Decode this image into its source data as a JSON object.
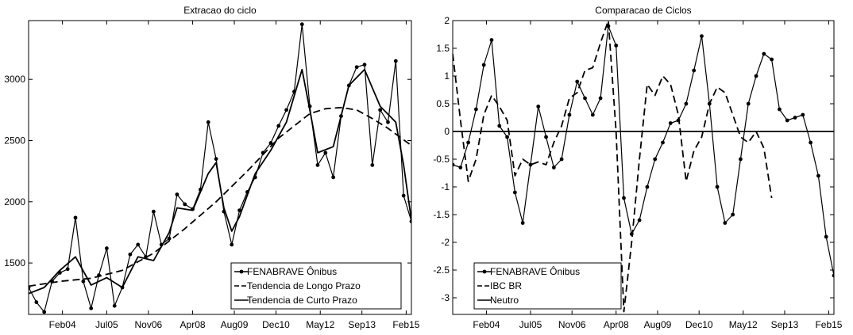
{
  "chart_data": [
    {
      "type": "line",
      "title": "Extracao do ciclo",
      "xlabel": "",
      "ylabel": "",
      "x_ticks": [
        "Feb04",
        "Jul05",
        "Nov06",
        "Apr08",
        "Aug09",
        "Dec10",
        "May12",
        "Sep13",
        "Feb15"
      ],
      "x_range": [
        "2003-01",
        "2015-04"
      ],
      "ylim": [
        1080,
        3480
      ],
      "y_ticks": [
        1500,
        2000,
        2500,
        3000
      ],
      "grid": false,
      "legend_position": "bottom-right",
      "series": [
        {
          "name": "FENABRAVE  Ônibus",
          "style": "solid-dots",
          "points": [
            [
              "2003-01",
              1300
            ],
            [
              "2003-04",
              1180
            ],
            [
              "2003-07",
              1100
            ],
            [
              "2003-10",
              1350
            ],
            [
              "2004-01",
              1420
            ],
            [
              "2004-04",
              1450
            ],
            [
              "2004-07",
              1870
            ],
            [
              "2004-10",
              1350
            ],
            [
              "2005-01",
              1130
            ],
            [
              "2005-04",
              1400
            ],
            [
              "2005-07",
              1620
            ],
            [
              "2005-10",
              1150
            ],
            [
              "2006-01",
              1300
            ],
            [
              "2006-04",
              1570
            ],
            [
              "2006-07",
              1650
            ],
            [
              "2006-10",
              1550
            ],
            [
              "2007-01",
              1920
            ],
            [
              "2007-04",
              1650
            ],
            [
              "2007-07",
              1700
            ],
            [
              "2007-10",
              2060
            ],
            [
              "2008-01",
              1980
            ],
            [
              "2008-04",
              1940
            ],
            [
              "2008-07",
              2100
            ],
            [
              "2008-10",
              2650
            ],
            [
              "2009-01",
              2350
            ],
            [
              "2009-04",
              1920
            ],
            [
              "2009-07",
              1650
            ],
            [
              "2009-10",
              1930
            ],
            [
              "2010-01",
              2080
            ],
            [
              "2010-04",
              2200
            ],
            [
              "2010-07",
              2400
            ],
            [
              "2010-10",
              2480
            ],
            [
              "2011-01",
              2620
            ],
            [
              "2011-04",
              2750
            ],
            [
              "2011-07",
              2900
            ],
            [
              "2011-10",
              3450
            ],
            [
              "2012-01",
              2780
            ],
            [
              "2012-04",
              2300
            ],
            [
              "2012-07",
              2400
            ],
            [
              "2012-10",
              2200
            ],
            [
              "2013-01",
              2700
            ],
            [
              "2013-04",
              2950
            ],
            [
              "2013-07",
              3100
            ],
            [
              "2013-10",
              3120
            ],
            [
              "2014-01",
              2300
            ],
            [
              "2014-04",
              2750
            ],
            [
              "2014-07",
              2650
            ],
            [
              "2014-10",
              3150
            ],
            [
              "2015-01",
              2050
            ],
            [
              "2015-04",
              1840
            ]
          ]
        },
        {
          "name": "Tendencia de Longo Prazo",
          "style": "dashed",
          "points": [
            [
              "2003-01",
              1310
            ],
            [
              "2004-01",
              1350
            ],
            [
              "2005-01",
              1375
            ],
            [
              "2006-01",
              1440
            ],
            [
              "2007-01",
              1580
            ],
            [
              "2008-01",
              1780
            ],
            [
              "2009-01",
              2000
            ],
            [
              "2010-01",
              2250
            ],
            [
              "2011-01",
              2520
            ],
            [
              "2012-01",
              2720
            ],
            [
              "2012-07",
              2760
            ],
            [
              "2013-01",
              2770
            ],
            [
              "2013-07",
              2750
            ],
            [
              "2014-01",
              2680
            ],
            [
              "2014-07",
              2600
            ],
            [
              "2015-04",
              2460
            ]
          ]
        },
        {
          "name": "Tendencia de Curto Prazo",
          "style": "solid",
          "points": [
            [
              "2003-01",
              1250
            ],
            [
              "2003-07",
              1300
            ],
            [
              "2004-01",
              1440
            ],
            [
              "2004-07",
              1550
            ],
            [
              "2005-01",
              1320
            ],
            [
              "2005-07",
              1380
            ],
            [
              "2006-01",
              1300
            ],
            [
              "2006-07",
              1550
            ],
            [
              "2007-01",
              1520
            ],
            [
              "2007-07",
              1750
            ],
            [
              "2007-10",
              1950
            ],
            [
              "2008-04",
              1930
            ],
            [
              "2008-10",
              2230
            ],
            [
              "2009-01",
              2320
            ],
            [
              "2009-04",
              1950
            ],
            [
              "2009-07",
              1760
            ],
            [
              "2009-10",
              1880
            ],
            [
              "2010-04",
              2230
            ],
            [
              "2010-10",
              2420
            ],
            [
              "2011-04",
              2650
            ],
            [
              "2011-10",
              3080
            ],
            [
              "2012-01",
              2750
            ],
            [
              "2012-04",
              2400
            ],
            [
              "2012-10",
              2450
            ],
            [
              "2013-04",
              2950
            ],
            [
              "2013-10",
              3080
            ],
            [
              "2014-04",
              2780
            ],
            [
              "2014-10",
              2650
            ],
            [
              "2015-01",
              2300
            ],
            [
              "2015-04",
              1850
            ]
          ]
        }
      ]
    },
    {
      "type": "line",
      "title": "Comparacao de Ciclos",
      "xlabel": "",
      "ylabel": "",
      "x_ticks": [
        "Feb04",
        "Jul05",
        "Nov06",
        "Apr08",
        "Aug09",
        "Dec10",
        "May12",
        "Sep13",
        "Feb15"
      ],
      "x_range": [
        "2003-01",
        "2015-04"
      ],
      "ylim": [
        -3.3,
        2.0
      ],
      "y_ticks": [
        -3,
        -2.5,
        -2,
        -1.5,
        -1,
        -0.5,
        0,
        0.5,
        1,
        1.5,
        2
      ],
      "grid": false,
      "legend_position": "bottom-left",
      "series": [
        {
          "name": "FENABRAVE  Ônibus",
          "style": "solid-dots",
          "points": [
            [
              "2003-01",
              -0.6
            ],
            [
              "2003-04",
              -0.65
            ],
            [
              "2003-07",
              -0.2
            ],
            [
              "2003-10",
              0.4
            ],
            [
              "2004-01",
              1.2
            ],
            [
              "2004-04",
              1.65
            ],
            [
              "2004-07",
              0.1
            ],
            [
              "2004-10",
              -0.1
            ],
            [
              "2005-01",
              -1.1
            ],
            [
              "2005-04",
              -1.65
            ],
            [
              "2005-07",
              -0.6
            ],
            [
              "2005-10",
              0.45
            ],
            [
              "2006-01",
              -0.1
            ],
            [
              "2006-04",
              -0.65
            ],
            [
              "2006-07",
              -0.5
            ],
            [
              "2006-10",
              0.3
            ],
            [
              "2007-01",
              0.9
            ],
            [
              "2007-04",
              0.6
            ],
            [
              "2007-07",
              0.3
            ],
            [
              "2007-10",
              0.6
            ],
            [
              "2008-01",
              1.9
            ],
            [
              "2008-04",
              1.55
            ],
            [
              "2008-07",
              -1.2
            ],
            [
              "2008-10",
              -1.85
            ],
            [
              "2009-01",
              -1.6
            ],
            [
              "2009-04",
              -1.0
            ],
            [
              "2009-07",
              -0.5
            ],
            [
              "2009-10",
              -0.2
            ],
            [
              "2010-01",
              0.15
            ],
            [
              "2010-04",
              0.2
            ],
            [
              "2010-07",
              0.5
            ],
            [
              "2010-10",
              1.1
            ],
            [
              "2011-01",
              1.72
            ],
            [
              "2011-04",
              0.5
            ],
            [
              "2011-07",
              -1.0
            ],
            [
              "2011-10",
              -1.65
            ],
            [
              "2012-01",
              -1.5
            ],
            [
              "2012-04",
              -0.5
            ],
            [
              "2012-07",
              0.5
            ],
            [
              "2012-10",
              1.0
            ],
            [
              "2013-01",
              1.4
            ],
            [
              "2013-04",
              1.3
            ],
            [
              "2013-07",
              0.4
            ],
            [
              "2013-10",
              0.2
            ],
            [
              "2014-01",
              0.25
            ],
            [
              "2014-04",
              0.3
            ],
            [
              "2014-07",
              -0.2
            ],
            [
              "2014-10",
              -0.8
            ],
            [
              "2015-01",
              -1.9
            ],
            [
              "2015-04",
              -2.6
            ]
          ]
        },
        {
          "name": "IBC BR",
          "style": "dashed",
          "points": [
            [
              "2003-01",
              1.4
            ],
            [
              "2003-04",
              0.2
            ],
            [
              "2003-07",
              -0.9
            ],
            [
              "2003-10",
              -0.5
            ],
            [
              "2004-01",
              0.3
            ],
            [
              "2004-04",
              0.65
            ],
            [
              "2004-07",
              0.45
            ],
            [
              "2004-10",
              0.2
            ],
            [
              "2005-01",
              -0.8
            ],
            [
              "2005-04",
              -0.5
            ],
            [
              "2005-07",
              -0.6
            ],
            [
              "2005-10",
              -0.55
            ],
            [
              "2006-01",
              -0.6
            ],
            [
              "2006-04",
              -0.2
            ],
            [
              "2006-07",
              0.1
            ],
            [
              "2006-10",
              0.6
            ],
            [
              "2007-01",
              0.7
            ],
            [
              "2007-04",
              1.1
            ],
            [
              "2007-07",
              1.15
            ],
            [
              "2007-10",
              1.6
            ],
            [
              "2008-01",
              2.0
            ],
            [
              "2008-04",
              0.0
            ],
            [
              "2008-07",
              -3.25
            ],
            [
              "2008-10",
              -2.0
            ],
            [
              "2009-01",
              -0.5
            ],
            [
              "2009-04",
              0.85
            ],
            [
              "2009-07",
              0.65
            ],
            [
              "2009-10",
              1.0
            ],
            [
              "2010-01",
              0.85
            ],
            [
              "2010-04",
              0.3
            ],
            [
              "2010-07",
              -0.9
            ],
            [
              "2010-10",
              -0.35
            ],
            [
              "2011-01",
              -0.1
            ],
            [
              "2011-04",
              0.5
            ],
            [
              "2011-07",
              0.8
            ],
            [
              "2011-10",
              0.7
            ],
            [
              "2012-01",
              0.3
            ],
            [
              "2012-04",
              -0.1
            ],
            [
              "2012-07",
              -0.2
            ],
            [
              "2012-10",
              0.0
            ],
            [
              "2013-01",
              -0.3
            ],
            [
              "2013-04",
              -1.2
            ]
          ]
        },
        {
          "name": "Neutro",
          "style": "solid",
          "points": [
            [
              "2003-01",
              0
            ],
            [
              "2015-04",
              0
            ]
          ]
        }
      ]
    }
  ]
}
